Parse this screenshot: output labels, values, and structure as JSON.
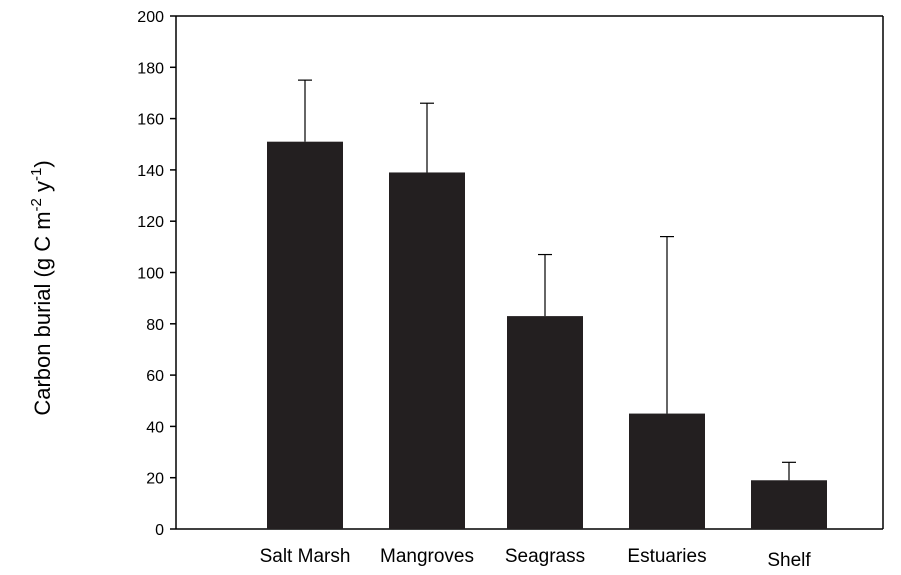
{
  "chart_data": {
    "type": "bar",
    "title": "",
    "xlabel": "",
    "ylabel": {
      "prefix": "Carbon burial (g C m",
      "sup1": "-2",
      "middle": " y",
      "sup2": "-1",
      "suffix": ")"
    },
    "categories": [
      "Salt Marsh",
      "Mangroves",
      "Seagrass",
      "Estuaries",
      "Shelf"
    ],
    "values": [
      151,
      139,
      83,
      45,
      19
    ],
    "error_upper": [
      24,
      27,
      24,
      69,
      7
    ],
    "ylim": [
      0,
      200
    ],
    "yticks": [
      0,
      20,
      40,
      60,
      80,
      100,
      120,
      140,
      160,
      180,
      200
    ],
    "grid": false,
    "legend": "none",
    "colors": {
      "bar": "#231f20",
      "axis": "#000000"
    }
  }
}
